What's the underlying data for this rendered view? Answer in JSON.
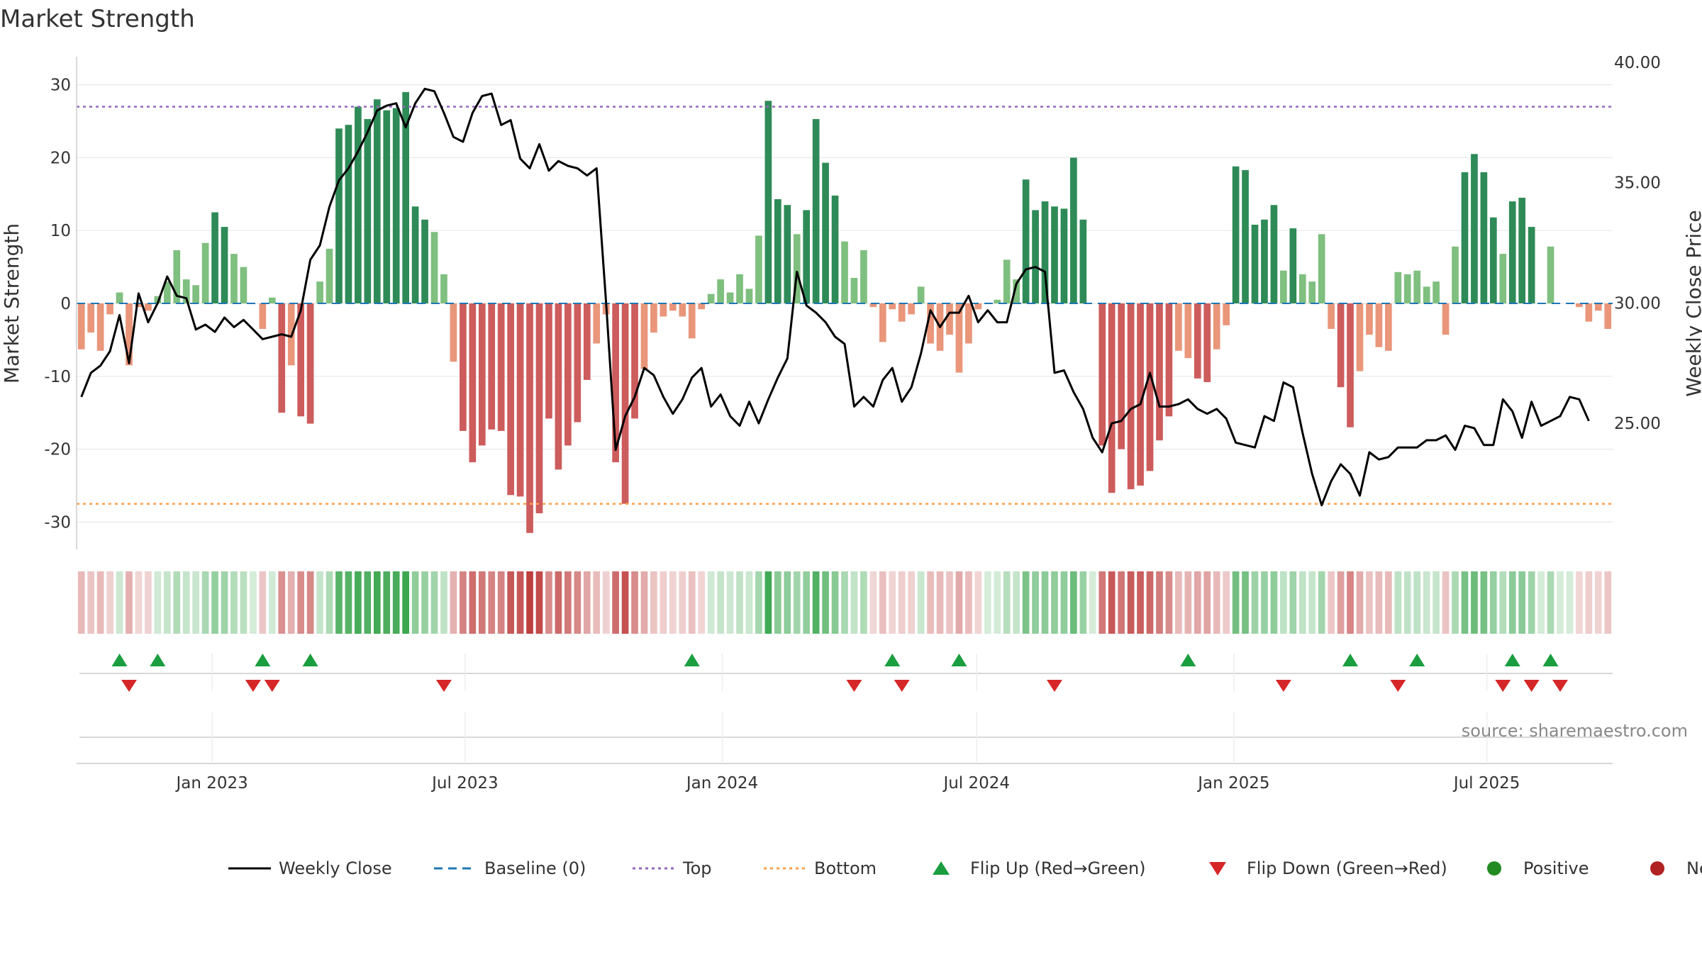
{
  "chart_data": {
    "type": "bar",
    "title": "Market Strength",
    "ylabel_left": "Market Strength",
    "ylabel_right": "Weekly Close Price",
    "ylim_left": [
      -35,
      35
    ],
    "ylim_right": [
      20.5,
      40.0
    ],
    "yticks_left": [
      30,
      20,
      10,
      0,
      -10,
      -20,
      -30
    ],
    "yticks_right": [
      "40.00",
      "35.00",
      "30.00",
      "25.00"
    ],
    "ytick_right_values": [
      40,
      35,
      30,
      25
    ],
    "top_threshold": 27.0,
    "bottom_threshold": -27.5,
    "x_start_date": "2022-09-26",
    "x_end_date": "2025-09-29",
    "x_ticks": [
      {
        "label": "Jan 2023",
        "date": "2023-01-01"
      },
      {
        "label": "Jul 2023",
        "date": "2023-07-01"
      },
      {
        "label": "Jan 2024",
        "date": "2024-01-01"
      },
      {
        "label": "Jul 2024",
        "date": "2024-07-01"
      },
      {
        "label": "Jan 2025",
        "date": "2025-01-01"
      },
      {
        "label": "Jul 2025",
        "date": "2025-07-01"
      }
    ],
    "strength": [
      -6.3,
      -4.0,
      -6.5,
      -1.5,
      1.5,
      -8.5,
      -0.5,
      -1.0,
      1.0,
      3.0,
      7.3,
      3.3,
      2.5,
      8.3,
      12.5,
      10.5,
      6.8,
      5.0,
      0,
      -3.5,
      0.8,
      -15.0,
      -8.5,
      -15.5,
      -16.5,
      3.0,
      7.5,
      24.0,
      24.5,
      27.0,
      25.3,
      28.0,
      26.5,
      26.8,
      29.0,
      13.3,
      11.5,
      9.8,
      4.0,
      -8.0,
      -17.5,
      -21.8,
      -19.5,
      -17.3,
      -17.5,
      -26.3,
      -26.5,
      -31.5,
      -28.8,
      -15.8,
      -22.8,
      -19.5,
      -16.3,
      -10.5,
      -5.5,
      -1.5,
      -21.8,
      -27.5,
      -15.8,
      -9.0,
      -4.0,
      -1.8,
      -1.0,
      -1.8,
      -4.8,
      -0.8,
      1.3,
      3.3,
      1.5,
      4.0,
      2.0,
      9.3,
      27.8,
      14.3,
      13.5,
      9.5,
      12.8,
      25.3,
      19.3,
      14.8,
      8.5,
      3.5,
      7.3,
      -0.5,
      -5.3,
      -0.8,
      -2.5,
      -1.5,
      2.3,
      -5.5,
      -6.5,
      -4.3,
      -9.5,
      -5.5,
      -0.8,
      0,
      0.5,
      6.0,
      3.3,
      17.0,
      12.8,
      14.0,
      13.3,
      13.0,
      20.0,
      11.5,
      0,
      -19.5,
      -26.0,
      -20.0,
      -25.5,
      -25.0,
      -23.0,
      -18.8,
      -15.5,
      -6.5,
      -7.5,
      -10.3,
      -10.8,
      -6.3,
      -3.0,
      18.8,
      18.3,
      10.8,
      11.5,
      13.5,
      4.5,
      10.3,
      4.0,
      3.0,
      9.5,
      -3.5,
      -11.5,
      -17.0,
      -9.3,
      -4.3,
      -6.0,
      -6.5,
      4.3,
      4.0,
      4.5,
      2.3,
      3.0,
      -4.3,
      7.8,
      18.0,
      20.5,
      18.0,
      11.8,
      6.8,
      14.0,
      14.5,
      10.5,
      0,
      7.8,
      0,
      0,
      -0.5,
      -2.5,
      -1.0,
      -3.5
    ],
    "close": [
      26.1,
      27.1,
      27.4,
      28.0,
      29.5,
      27.5,
      30.4,
      29.2,
      30.0,
      31.1,
      30.3,
      30.2,
      28.9,
      29.1,
      28.8,
      29.4,
      29.0,
      29.3,
      28.9,
      28.5,
      28.6,
      28.7,
      28.6,
      29.7,
      31.8,
      32.4,
      34.0,
      35.1,
      35.6,
      36.3,
      37.1,
      38.0,
      38.2,
      38.3,
      37.3,
      38.3,
      38.9,
      38.8,
      37.9,
      36.9,
      36.7,
      37.9,
      38.6,
      38.7,
      37.4,
      37.6,
      36.0,
      35.6,
      36.6,
      35.5,
      35.9,
      35.7,
      35.6,
      35.3,
      35.6,
      30.0,
      23.9,
      25.3,
      26.1,
      27.3,
      27.0,
      26.1,
      25.4,
      26.0,
      26.9,
      27.3,
      25.7,
      26.2,
      25.3,
      24.9,
      25.9,
      25.0,
      26.0,
      26.9,
      27.7,
      31.3,
      29.9,
      29.6,
      29.2,
      28.6,
      28.3,
      25.7,
      26.1,
      25.7,
      26.8,
      27.3,
      25.9,
      26.5,
      27.9,
      29.7,
      29.0,
      29.6,
      29.6,
      30.3,
      29.2,
      29.7,
      29.2,
      29.2,
      30.8,
      31.4,
      31.5,
      31.3,
      27.1,
      27.2,
      26.3,
      25.6,
      24.4,
      23.8,
      25.0,
      25.1,
      25.6,
      25.8,
      27.1,
      25.7,
      25.7,
      25.8,
      26.0,
      25.6,
      25.4,
      25.6,
      25.2,
      24.2,
      24.1,
      24.0,
      25.3,
      25.1,
      26.7,
      26.5,
      24.6,
      22.9,
      21.6,
      22.6,
      23.3,
      22.9,
      22.0,
      23.8,
      23.5,
      23.6,
      24.0,
      24.0,
      24.0,
      24.3,
      24.3,
      24.5,
      23.9,
      24.9,
      24.8,
      24.1,
      24.1,
      26.0,
      25.5,
      24.4,
      25.9,
      24.9,
      25.1,
      25.3,
      26.1,
      26.0,
      25.1
    ],
    "flip_up_weeks": [
      4,
      8,
      19,
      24,
      64,
      85,
      92,
      116,
      133,
      140,
      150,
      154
    ],
    "flip_down_weeks": [
      5,
      18,
      20,
      38,
      81,
      86,
      102,
      126,
      138,
      149,
      152,
      155
    ],
    "legend": [
      {
        "label": "Weekly Close",
        "kind": "line",
        "color": "#000000"
      },
      {
        "label": "Baseline (0)",
        "kind": "dash",
        "color": "#1f77b4"
      },
      {
        "label": "Top",
        "kind": "dot",
        "color": "#9467bd"
      },
      {
        "label": "Bottom",
        "kind": "dot",
        "color": "#ff9f4a"
      },
      {
        "label": "Flip Up (Red→Green)",
        "kind": "tri-up",
        "color": "#1a9e3f"
      },
      {
        "label": "Flip Down (Green→Red)",
        "kind": "tri-down",
        "color": "#d62728"
      },
      {
        "label": "Positive",
        "kind": "circle",
        "color": "#228b22"
      },
      {
        "label": "Negative",
        "kind": "circle",
        "color": "#b22222"
      }
    ],
    "source": "source: sharemaestro.com"
  },
  "colors": {
    "pos_strong": "#2e8b57",
    "pos_light": "#7fbf7f",
    "neg_strong": "#cd5c5c",
    "neg_light": "#e9967a",
    "grid": "#e8e8e8",
    "baseline": "#1f77b4",
    "top": "#9467bd",
    "bottom": "#ff9f4a"
  }
}
